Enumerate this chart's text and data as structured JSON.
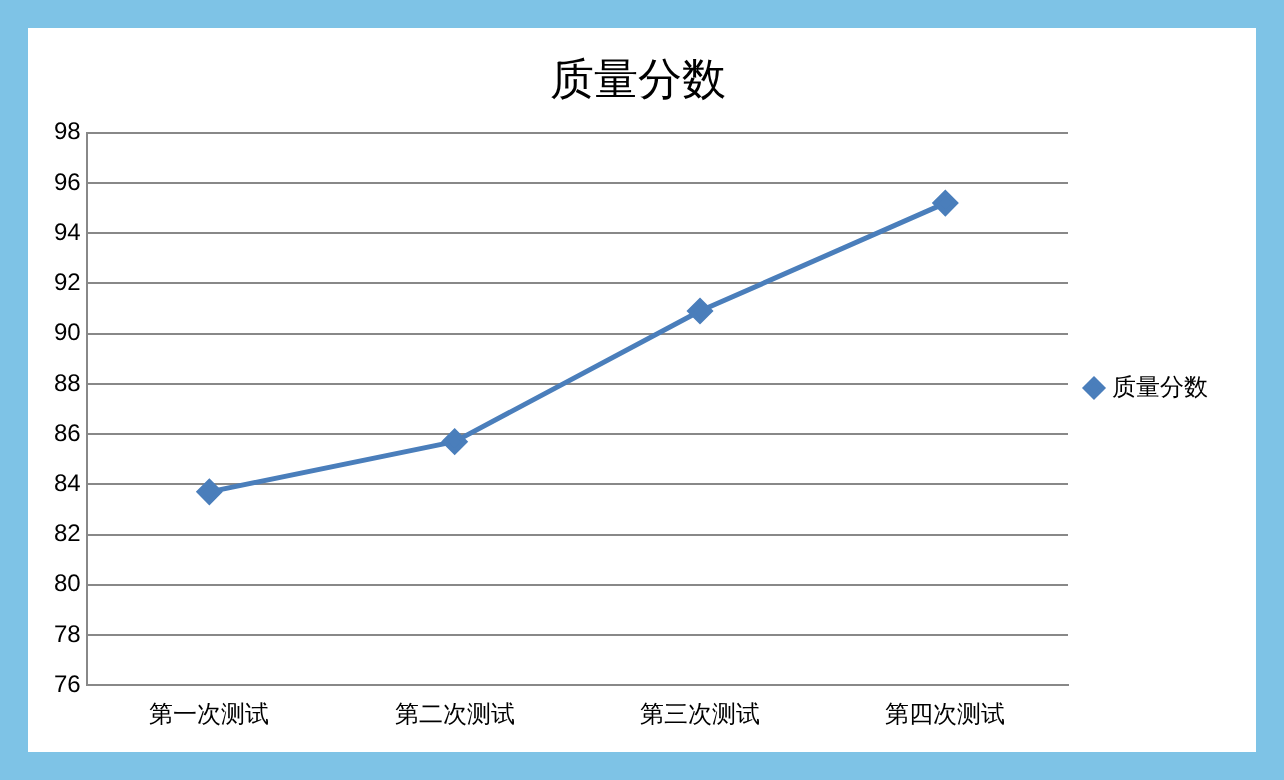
{
  "chart_data": {
    "type": "line",
    "title": "质量分数",
    "categories": [
      "第一次测试",
      "第二次测试",
      "第三次测试",
      "第四次测试"
    ],
    "series": [
      {
        "name": "质量分数",
        "color": "#4a7ebb",
        "values": [
          83.7,
          85.7,
          90.9,
          95.2
        ]
      }
    ],
    "ylim": [
      76,
      98
    ],
    "yticks": [
      76,
      78,
      80,
      82,
      84,
      86,
      88,
      90,
      92,
      94,
      96,
      98
    ],
    "grid": "y",
    "legend": "right",
    "marker": "diamond",
    "line_style": "solid"
  }
}
